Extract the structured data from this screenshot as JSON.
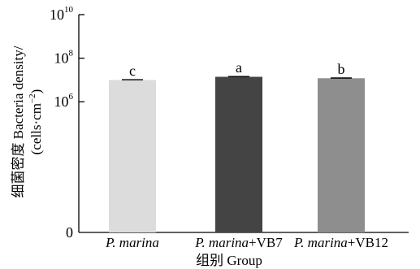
{
  "chart_data": {
    "type": "bar",
    "categories": [
      "P. marina",
      "P. marina+VB7",
      "P. marina+VB12"
    ],
    "category_parts": [
      {
        "italic": "P. marina",
        "normal": ""
      },
      {
        "italic": "P. marina",
        "normal": "+VB7"
      },
      {
        "italic": "P. marina",
        "normal": "+VB12"
      }
    ],
    "values": [
      10000000,
      14000000,
      12000000
    ],
    "errors": [
      300000,
      400000,
      300000
    ],
    "significance": [
      "c",
      "a",
      "b"
    ],
    "colors": [
      "#dcdcdc",
      "#444444",
      "#8e8e8e"
    ],
    "y_scale": "log",
    "ylim": [
      1,
      10000000000
    ],
    "y_ticks": [
      {
        "value": 1,
        "base": "0",
        "exp": ""
      },
      {
        "value": 1000000,
        "base": "10",
        "exp": "6"
      },
      {
        "value": 100000000,
        "base": "10",
        "exp": "8"
      },
      {
        "value": 10000000000,
        "base": "10",
        "exp": "10"
      }
    ],
    "ylabel_line1": "细菌密度 Bacteria density/",
    "ylabel_line2_prefix": "(cells·cm",
    "ylabel_line2_exp": "−2",
    "ylabel_line2_suffix": ")",
    "xlabel": "组别 Group",
    "grid": false
  }
}
